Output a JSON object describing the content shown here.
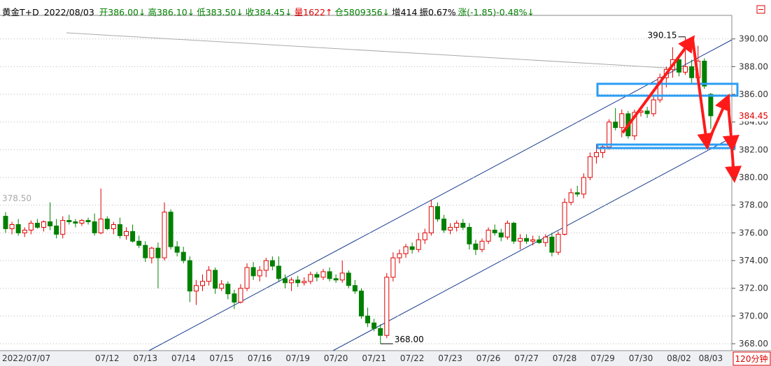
{
  "header": {
    "symbol": "黄金T+D",
    "date": "2022/08/03",
    "fields": [
      {
        "text": "开386.00↓",
        "color": "#008000"
      },
      {
        "text": "高386.10↓",
        "color": "#008000"
      },
      {
        "text": "低383.50↓",
        "color": "#008000"
      },
      {
        "text": "收384.45↓",
        "color": "#008000"
      },
      {
        "text": "量1622↑",
        "color": "#e00000"
      },
      {
        "text": "仓5809356↓",
        "color": "#008000"
      },
      {
        "text": "增414",
        "color": "#000000"
      },
      {
        "text": "振0.67%",
        "color": "#000000"
      },
      {
        "text": "涨(-1.85)-0.48%↓",
        "color": "#008000"
      }
    ]
  },
  "chart_data": {
    "type": "candlestick",
    "period": "120分钟",
    "up_color": "#e00000",
    "down_color": "#008000",
    "ylim": [
      367.5,
      391.7
    ],
    "yticks": [
      {
        "value": 368,
        "label": "368.00"
      },
      {
        "value": 370,
        "label": "370.00"
      },
      {
        "value": 372,
        "label": "372.00"
      },
      {
        "value": 374,
        "label": "374.00"
      },
      {
        "value": 376,
        "label": "376.00"
      },
      {
        "value": 378,
        "label": "378.00"
      },
      {
        "value": 380,
        "label": "380.00"
      },
      {
        "value": 382,
        "label": "382.00"
      },
      {
        "value": 384,
        "label": "384.00"
      },
      {
        "value": 386,
        "label": "386.00"
      },
      {
        "value": 388,
        "label": "388.00"
      },
      {
        "value": 390,
        "label": "390.00"
      }
    ],
    "grid": true,
    "ref_level": {
      "value": 378.5,
      "label": "378.50"
    },
    "last_price": {
      "value": 384.45,
      "label": "384.45"
    },
    "annotations": [
      {
        "index": 107,
        "value": 390.15,
        "label": "390.15"
      },
      {
        "index": 59,
        "value": 368,
        "label": "368.00"
      }
    ],
    "categories": [
      "2022/07/07",
      null,
      null,
      null,
      null,
      null,
      null,
      null,
      null,
      null,
      null,
      null,
      null,
      null,
      null,
      null,
      "07/12",
      null,
      null,
      null,
      null,
      null,
      "07/13",
      null,
      null,
      null,
      null,
      null,
      "07/14",
      null,
      null,
      null,
      null,
      null,
      "07/15",
      null,
      null,
      null,
      null,
      null,
      "07/16",
      null,
      null,
      null,
      null,
      null,
      "07/19",
      null,
      null,
      null,
      null,
      null,
      "07/20",
      null,
      null,
      null,
      null,
      null,
      "07/21",
      null,
      null,
      null,
      null,
      null,
      "07/22",
      null,
      null,
      null,
      null,
      null,
      "07/23",
      null,
      null,
      null,
      null,
      null,
      "07/26",
      null,
      null,
      null,
      null,
      null,
      "07/27",
      null,
      null,
      null,
      null,
      null,
      "07/28",
      null,
      null,
      null,
      null,
      null,
      "07/29",
      null,
      null,
      null,
      null,
      null,
      "07/30",
      null,
      null,
      null,
      null,
      null,
      "08/02",
      null,
      null,
      null,
      null,
      "08/03"
    ],
    "ohlc": [
      [
        377.2,
        377.5,
        376.0,
        376.3
      ],
      [
        376.3,
        376.8,
        375.9,
        376.6
      ],
      [
        376.6,
        377.0,
        375.8,
        376.0
      ],
      [
        376.0,
        376.4,
        375.7,
        376.2
      ],
      [
        376.2,
        376.9,
        375.9,
        376.7
      ],
      [
        376.7,
        377.0,
        376.3,
        376.4
      ],
      [
        376.4,
        376.9,
        376.1,
        376.8
      ],
      [
        376.8,
        378.2,
        376.2,
        376.5
      ],
      [
        376.5,
        377.0,
        375.6,
        375.9
      ],
      [
        375.9,
        377.2,
        375.6,
        376.9
      ],
      [
        376.9,
        377.3,
        376.6,
        376.8
      ],
      [
        376.8,
        377.0,
        376.4,
        376.7
      ],
      [
        376.7,
        377.0,
        376.5,
        376.9
      ],
      [
        376.9,
        377.1,
        376.6,
        376.8
      ],
      [
        376.8,
        377.4,
        375.8,
        376.0
      ],
      [
        376.0,
        379.2,
        375.9,
        377.0
      ],
      [
        377.0,
        377.2,
        376.2,
        376.3
      ],
      [
        376.3,
        376.8,
        375.9,
        376.6
      ],
      [
        376.6,
        377.1,
        375.6,
        375.8
      ],
      [
        375.8,
        376.4,
        375.5,
        376.1
      ],
      [
        376.1,
        376.6,
        375.3,
        375.4
      ],
      [
        375.4,
        375.8,
        374.9,
        375.1
      ],
      [
        375.1,
        375.4,
        373.9,
        374.2
      ],
      [
        374.2,
        375.0,
        373.8,
        374.9
      ],
      [
        374.9,
        375.3,
        372.0,
        374.2
      ],
      [
        374.2,
        378.2,
        374.0,
        377.5
      ],
      [
        377.5,
        377.7,
        374.8,
        375.0
      ],
      [
        375.0,
        375.4,
        374.3,
        374.6
      ],
      [
        374.6,
        375.0,
        373.8,
        374.0
      ],
      [
        374.0,
        374.3,
        371.0,
        371.8
      ],
      [
        371.8,
        372.6,
        370.8,
        372.2
      ],
      [
        372.2,
        373.0,
        371.8,
        372.5
      ],
      [
        372.5,
        373.6,
        372.2,
        373.3
      ],
      [
        373.3,
        373.5,
        371.6,
        372.0
      ],
      [
        372.0,
        372.6,
        371.8,
        372.3
      ],
      [
        372.3,
        372.5,
        371.2,
        371.6
      ],
      [
        371.6,
        371.9,
        370.5,
        371.0
      ],
      [
        371.0,
        372.3,
        370.9,
        372.0
      ],
      [
        372.0,
        373.8,
        371.8,
        373.5
      ],
      [
        373.5,
        373.9,
        372.6,
        372.9
      ],
      [
        372.9,
        373.6,
        372.5,
        373.3
      ],
      [
        373.3,
        374.2,
        372.8,
        374.0
      ],
      [
        374.0,
        374.3,
        373.3,
        373.6
      ],
      [
        373.6,
        374.3,
        372.5,
        372.7
      ],
      [
        372.7,
        373.0,
        372.0,
        372.4
      ],
      [
        372.4,
        372.8,
        371.8,
        372.6
      ],
      [
        372.6,
        372.9,
        372.1,
        372.4
      ],
      [
        372.4,
        372.8,
        372.2,
        372.5
      ],
      [
        372.5,
        373.2,
        372.3,
        373.0
      ],
      [
        373.0,
        373.2,
        372.5,
        372.8
      ],
      [
        372.8,
        373.4,
        372.6,
        373.2
      ],
      [
        373.2,
        373.5,
        372.5,
        372.7
      ],
      [
        372.7,
        373.0,
        372.4,
        372.6
      ],
      [
        372.6,
        374.0,
        372.4,
        373.1
      ],
      [
        373.1,
        373.3,
        372.0,
        372.2
      ],
      [
        372.2,
        372.6,
        371.6,
        371.8
      ],
      [
        371.8,
        372.0,
        369.8,
        370.0
      ],
      [
        370.0,
        370.6,
        369.2,
        369.5
      ],
      [
        369.5,
        369.8,
        368.9,
        369.1
      ],
      [
        369.1,
        369.4,
        368.0,
        368.6
      ],
      [
        368.6,
        373.1,
        368.4,
        372.8
      ],
      [
        372.8,
        374.6,
        372.5,
        374.2
      ],
      [
        374.2,
        374.8,
        373.8,
        374.5
      ],
      [
        374.5,
        375.2,
        374.2,
        375.0
      ],
      [
        375.0,
        375.3,
        374.5,
        374.8
      ],
      [
        374.8,
        376.0,
        374.6,
        375.5
      ],
      [
        375.5,
        376.3,
        375.2,
        376.0
      ],
      [
        376.0,
        378.4,
        375.8,
        377.9
      ],
      [
        377.9,
        378.2,
        376.8,
        377.0
      ],
      [
        377.0,
        377.3,
        376.0,
        376.2
      ],
      [
        376.2,
        376.7,
        375.9,
        376.4
      ],
      [
        376.4,
        376.9,
        376.1,
        376.7
      ],
      [
        376.7,
        377.0,
        376.2,
        376.4
      ],
      [
        376.4,
        376.7,
        374.8,
        375.2
      ],
      [
        375.2,
        375.5,
        374.4,
        374.8
      ],
      [
        374.8,
        375.6,
        374.6,
        375.4
      ],
      [
        375.4,
        376.4,
        375.2,
        376.2
      ],
      [
        376.2,
        376.6,
        375.8,
        376.0
      ],
      [
        376.0,
        376.3,
        375.4,
        375.7
      ],
      [
        375.7,
        376.9,
        375.5,
        376.7
      ],
      [
        376.7,
        376.8,
        375.2,
        375.4
      ],
      [
        375.4,
        375.9,
        374.8,
        375.6
      ],
      [
        375.6,
        375.9,
        375.2,
        375.4
      ],
      [
        375.4,
        375.8,
        375.1,
        375.5
      ],
      [
        375.5,
        375.8,
        375.2,
        375.3
      ],
      [
        375.3,
        375.9,
        375.0,
        375.7
      ],
      [
        375.7,
        376.0,
        374.3,
        374.6
      ],
      [
        374.6,
        376.1,
        374.4,
        375.9
      ],
      [
        375.9,
        378.5,
        375.8,
        378.2
      ],
      [
        378.2,
        379.2,
        378.0,
        378.9
      ],
      [
        378.9,
        379.4,
        378.6,
        378.8
      ],
      [
        378.8,
        380.3,
        378.5,
        380.0
      ],
      [
        380.0,
        381.8,
        379.8,
        381.5
      ],
      [
        381.5,
        382.4,
        381.0,
        381.8
      ],
      [
        381.8,
        382.4,
        381.4,
        382.2
      ],
      [
        382.2,
        384.2,
        382.0,
        384.0
      ],
      [
        384.0,
        385.0,
        383.4,
        383.6
      ],
      [
        383.6,
        384.9,
        382.9,
        384.6
      ],
      [
        384.6,
        384.8,
        382.8,
        383.0
      ],
      [
        383.0,
        384.9,
        382.7,
        384.7
      ],
      [
        384.7,
        385.0,
        384.4,
        384.8
      ],
      [
        384.8,
        385.1,
        384.3,
        384.6
      ],
      [
        384.6,
        385.9,
        384.4,
        385.6
      ],
      [
        385.6,
        387.5,
        385.4,
        387.2
      ],
      [
        387.2,
        388.0,
        386.5,
        387.8
      ],
      [
        387.8,
        389.4,
        387.2,
        388.5
      ],
      [
        388.5,
        388.8,
        387.3,
        387.6
      ],
      [
        387.6,
        390.15,
        387.4,
        388.0
      ],
      [
        388.0,
        388.5,
        386.8,
        387.2
      ],
      [
        387.2,
        389.5,
        386.9,
        388.4
      ],
      [
        388.4,
        388.6,
        386.4,
        386.6
      ],
      [
        386.0,
        386.1,
        383.5,
        384.45
      ]
    ]
  }
}
